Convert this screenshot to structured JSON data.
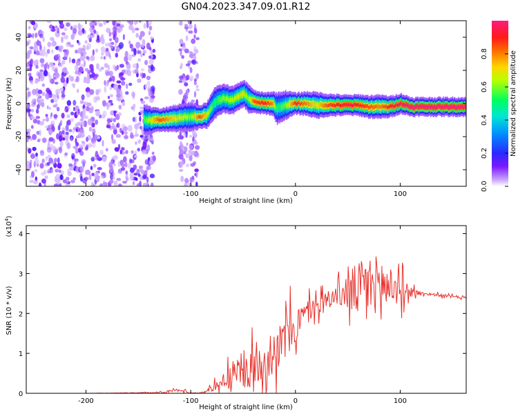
{
  "title": "GN04.2023.347.09.01.R12",
  "chart_data": [
    {
      "type": "heatmap",
      "xlabel": "Height of straight line (km)",
      "ylabel": "Frequency (Hz)",
      "xlim": [
        -257,
        163
      ],
      "ylim": [
        -50,
        50
      ],
      "x_ticks": [
        -200,
        -100,
        0,
        100
      ],
      "y_ticks": [
        -40,
        -20,
        0,
        20,
        40
      ],
      "colorbar": {
        "label": "Normalized spectral amplitude",
        "range": [
          0,
          1
        ],
        "ticks": [
          0.0,
          0.2,
          0.4,
          0.6,
          0.8
        ],
        "colormap": "rainbow (purple-blue-cyan-green-yellow-red-magenta)"
      },
      "ridge": {
        "x": [
          -145,
          -130,
          -115,
          -100,
          -92,
          -85,
          -78,
          -70,
          -60,
          -50,
          -45,
          -40,
          -30,
          -22,
          -18,
          -10,
          0,
          10,
          20,
          30,
          40,
          50,
          60,
          70,
          80,
          90,
          100,
          110,
          130,
          150,
          163
        ],
        "frequency": [
          -10,
          -10,
          -9,
          -8,
          -8,
          -7,
          0,
          3,
          2,
          6,
          3,
          1,
          0,
          0,
          -3,
          -1,
          0,
          0,
          -1,
          -1,
          -1,
          -1,
          -1,
          -2,
          -2,
          -2,
          0,
          -2,
          -2,
          -2,
          -2
        ],
        "peak_amplitude": [
          0.55,
          0.85,
          0.7,
          0.6,
          0.85,
          0.7,
          0.5,
          0.6,
          0.65,
          0.7,
          0.6,
          0.85,
          0.9,
          0.8,
          0.5,
          0.6,
          0.9,
          0.8,
          0.7,
          0.85,
          0.9,
          0.95,
          0.9,
          0.85,
          0.8,
          0.9,
          0.95,
          1.0,
          1.0,
          1.0,
          1.0
        ]
      },
      "noise_region_x": [
        -257,
        -135
      ],
      "noise_strip_x": [
        -110,
        -93
      ]
    },
    {
      "type": "line",
      "xlabel": "Height of straight line (km)",
      "ylabel": "SNR (10 * v/v)",
      "scale_label": "(x10",
      "scale_exp": "4",
      "scale_close": ")",
      "xlim": [
        -257,
        163
      ],
      "ylim": [
        0,
        4.2
      ],
      "x_ticks": [
        -200,
        -100,
        0,
        100
      ],
      "y_ticks": [
        0,
        1,
        2,
        3,
        4
      ],
      "color": "#e8302a",
      "series": [
        {
          "x": [
            -257,
            -200,
            -150,
            -125,
            -115,
            -105,
            -100,
            -90,
            -80,
            -70,
            -60,
            -50,
            -40,
            -30,
            -20,
            -10,
            0,
            10,
            20,
            30,
            40,
            50,
            60,
            70,
            80,
            90,
            100,
            110,
            120,
            130,
            140,
            150,
            163
          ],
          "values": [
            0.0,
            0.0,
            0.01,
            0.03,
            0.08,
            0.05,
            0.01,
            0.01,
            0.12,
            0.3,
            0.45,
            0.55,
            0.6,
            0.85,
            1.05,
            1.3,
            1.7,
            2.0,
            2.2,
            2.35,
            2.45,
            2.55,
            2.6,
            2.7,
            2.75,
            2.7,
            2.6,
            2.55,
            2.5,
            2.48,
            2.45,
            2.42,
            2.4
          ],
          "spread": [
            0,
            0,
            0.01,
            0.03,
            0.05,
            0.04,
            0.01,
            0.02,
            0.1,
            0.25,
            0.5,
            0.6,
            0.7,
            0.8,
            0.8,
            0.8,
            0.7,
            0.45,
            0.35,
            0.3,
            0.35,
            0.7,
            1.0,
            1.1,
            1.0,
            0.8,
            0.5,
            0.2,
            0.06,
            0.05,
            0.05,
            0.05,
            0.05
          ]
        }
      ]
    }
  ]
}
